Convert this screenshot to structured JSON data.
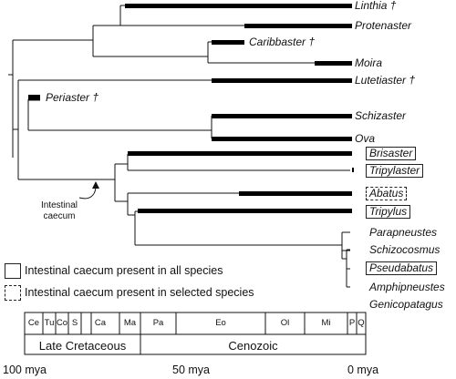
{
  "taxa": [
    {
      "id": "linthia",
      "label": "Linthia †"
    },
    {
      "id": "protenaster",
      "label": "Protenaster"
    },
    {
      "id": "caribbaster",
      "label": "Caribbaster †"
    },
    {
      "id": "moira",
      "label": "Moira"
    },
    {
      "id": "lutetiaster",
      "label": "Lutetiaster †"
    },
    {
      "id": "periaster",
      "label": "Periaster †"
    },
    {
      "id": "schizaster",
      "label": "Schizaster"
    },
    {
      "id": "ova",
      "label": "Ova"
    },
    {
      "id": "brisaster",
      "label": "Brisaster",
      "caecum": "all"
    },
    {
      "id": "tripylaster",
      "label": "Tripylaster",
      "caecum": "all"
    },
    {
      "id": "abatus",
      "label": "Abatus",
      "caecum": "selected"
    },
    {
      "id": "tripylus",
      "label": "Tripylus",
      "caecum": "all"
    },
    {
      "id": "parapneustes",
      "label": "Parapneustes"
    },
    {
      "id": "schizocosmus",
      "label": "Schizocosmus"
    },
    {
      "id": "pseudabatus",
      "label": "Pseudabatus",
      "caecum": "all"
    },
    {
      "id": "amphipneustes",
      "label": "Amphipneustes"
    },
    {
      "id": "genicopatagus",
      "label": "Genicopatagus"
    }
  ],
  "annotation": {
    "label": "Intestinal\ncaecum"
  },
  "legend": {
    "all": "Intestinal caecum present in all species",
    "selected": "Intestinal caecum present in selected species"
  },
  "timescale": {
    "epochs": [
      "Ce",
      "Tu",
      "Co",
      "S",
      "Ca",
      "Ma",
      "Pa",
      "Eo",
      "Ol",
      "Mi",
      "P",
      "Q"
    ],
    "eras": [
      "Late Cretaceous",
      "Cenozoic"
    ],
    "ticks": [
      "100 mya",
      "50 mya",
      "0 mya"
    ]
  },
  "colors": {
    "line": "#111111",
    "bar": "#000000"
  }
}
